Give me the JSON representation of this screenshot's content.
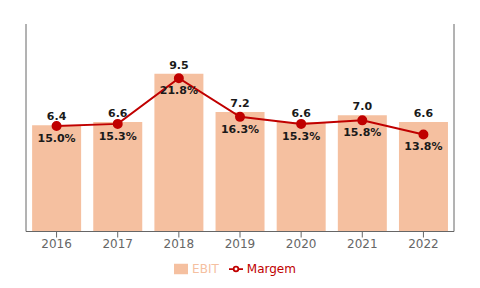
{
  "chart_data": {
    "type": "bar",
    "categories": [
      "2016",
      "2017",
      "2018",
      "2019",
      "2020",
      "2021",
      "2022"
    ],
    "series": [
      {
        "name": "EBIT",
        "type": "bar",
        "color": "#F5C0A0",
        "values": [
          6.4,
          6.6,
          9.5,
          7.2,
          6.6,
          7.0,
          6.6
        ],
        "value_labels": [
          "6.4",
          "6.6",
          "9.5",
          "7.2",
          "6.6",
          "7.0",
          "6.6"
        ]
      },
      {
        "name": "Margem",
        "type": "line",
        "axis": "y2",
        "color": "#C00000",
        "marker": "circle",
        "values": [
          15.0,
          15.3,
          21.8,
          16.3,
          15.3,
          15.8,
          13.8
        ],
        "value_labels": [
          "15.0%",
          "15.3%",
          "21.8%",
          "16.3%",
          "15.3%",
          "15.8%",
          "13.8%"
        ]
      }
    ],
    "ylim": [
      0,
      12.5
    ],
    "y2lim": [
      0,
      29.5
    ],
    "tick_labels": "x",
    "data_labels": true,
    "grid": false,
    "legend": "bottom"
  }
}
